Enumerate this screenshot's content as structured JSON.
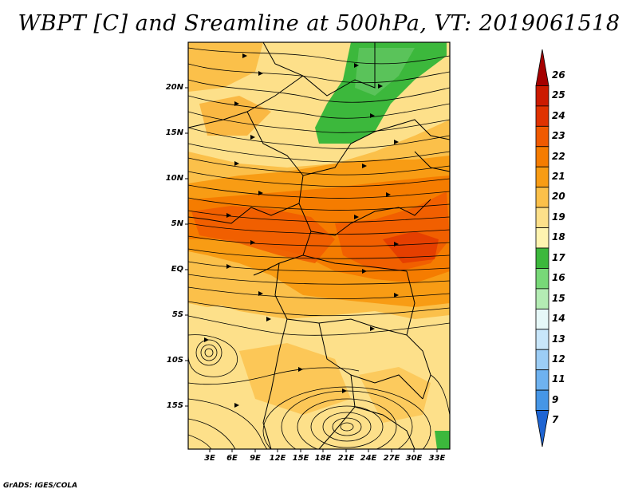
{
  "title": "WBPT [C] and Sreamline at 500hPa, VT: 2019061518",
  "credit": "GrADS: IGES/COLA",
  "map": {
    "lat_labels": [
      "20N",
      "15N",
      "10N",
      "5N",
      "EQ",
      "5S",
      "10S",
      "15S"
    ],
    "lon_labels": [
      "3E",
      "6E",
      "9E",
      "12E",
      "15E",
      "18E",
      "21E",
      "24E",
      "27E",
      "30E",
      "33E"
    ]
  },
  "colorbar": {
    "labels": [
      "26",
      "25",
      "24",
      "23",
      "22",
      "21",
      "20",
      "19",
      "18",
      "17",
      "16",
      "15",
      "14",
      "13",
      "12",
      "11",
      "9",
      "7"
    ],
    "colors": [
      "#a50000",
      "#cc1a00",
      "#e03200",
      "#f05a00",
      "#f57c00",
      "#f89c14",
      "#fbc04a",
      "#fde08a",
      "#fff4b0",
      "#3cb83c",
      "#78d878",
      "#b4ecb4",
      "#e6f8f8",
      "#c8e6fa",
      "#9ccdf5",
      "#6eb2f0",
      "#4696e6",
      "#1e64d2"
    ]
  }
}
